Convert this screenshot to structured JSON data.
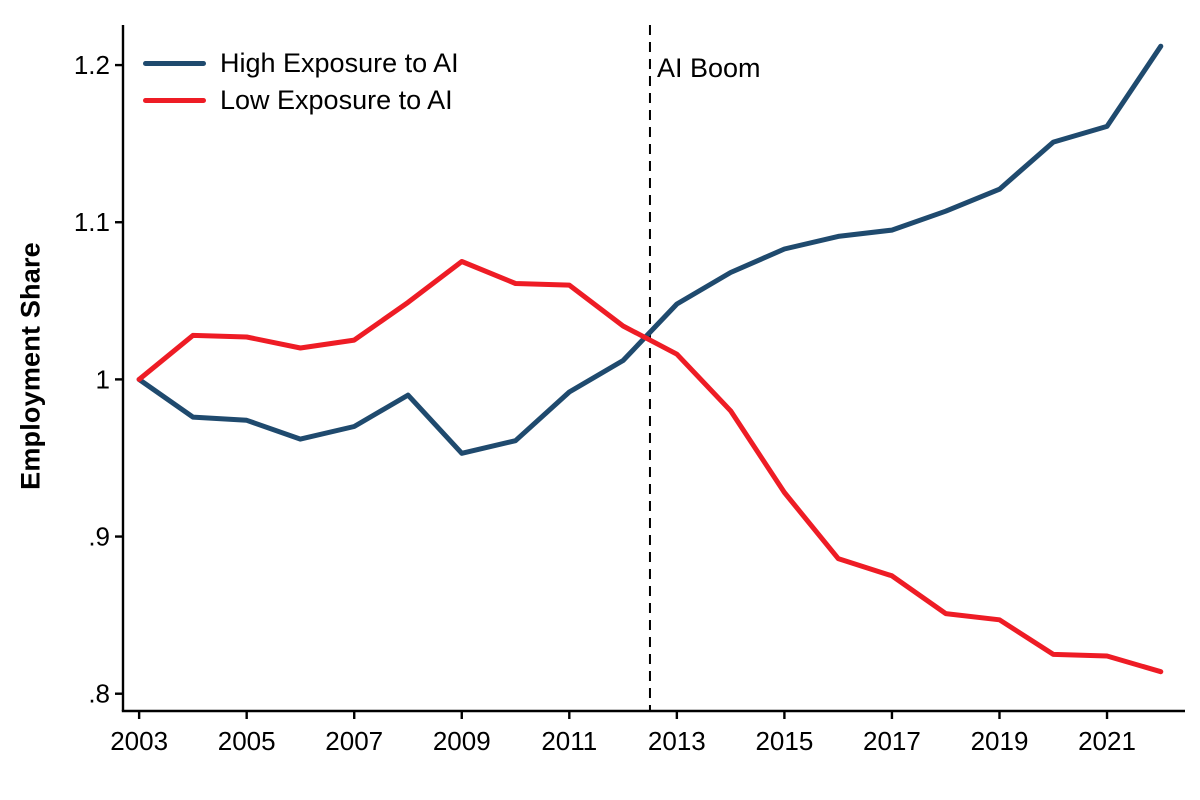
{
  "figure": {
    "ylabel": "Employment Share",
    "annotation_label": "AI Boom",
    "background_color": "#ffffff",
    "axis_color": "#000000"
  },
  "legend": {
    "position": "top-left",
    "items": [
      {
        "label": "High Exposure to AI",
        "color": "#1f4a6e"
      },
      {
        "label": "Low Exposure to AI",
        "color": "#ee1c25"
      }
    ]
  },
  "chart_data": {
    "type": "line",
    "title": "",
    "xlabel": "",
    "ylabel": "Employment Share",
    "x": [
      2003,
      2004,
      2005,
      2006,
      2007,
      2008,
      2009,
      2010,
      2011,
      2012,
      2013,
      2014,
      2015,
      2016,
      2017,
      2018,
      2019,
      2020,
      2021,
      2022
    ],
    "series": [
      {
        "name": "High Exposure to AI",
        "color": "#1f4a6e",
        "values": [
          1.0,
          0.976,
          0.974,
          0.962,
          0.97,
          0.99,
          0.953,
          0.961,
          0.992,
          1.012,
          1.048,
          1.068,
          1.083,
          1.091,
          1.095,
          1.107,
          1.121,
          1.151,
          1.161,
          1.212
        ]
      },
      {
        "name": "Low Exposure to AI",
        "color": "#ee1c25",
        "values": [
          1.0,
          1.028,
          1.027,
          1.02,
          1.025,
          1.049,
          1.075,
          1.061,
          1.06,
          1.034,
          1.016,
          0.98,
          0.928,
          0.886,
          0.875,
          0.851,
          0.847,
          0.825,
          0.824,
          0.814
        ]
      }
    ],
    "xticks": [
      2003,
      2005,
      2007,
      2009,
      2011,
      2013,
      2015,
      2017,
      2019,
      2021
    ],
    "yticks": [
      0.8,
      0.9,
      1,
      1.1,
      1.2
    ],
    "ytick_labels": [
      ".8",
      ".9",
      "1",
      "1.1",
      "1.2"
    ],
    "xlim": [
      2002.7,
      2022.45
    ],
    "ylim": [
      0.789,
      1.2255
    ],
    "grid": false,
    "legend_position": "top-left",
    "vline": {
      "x": 2012.5,
      "label": "AI Boom",
      "style": "dashed",
      "color": "#000000"
    }
  }
}
